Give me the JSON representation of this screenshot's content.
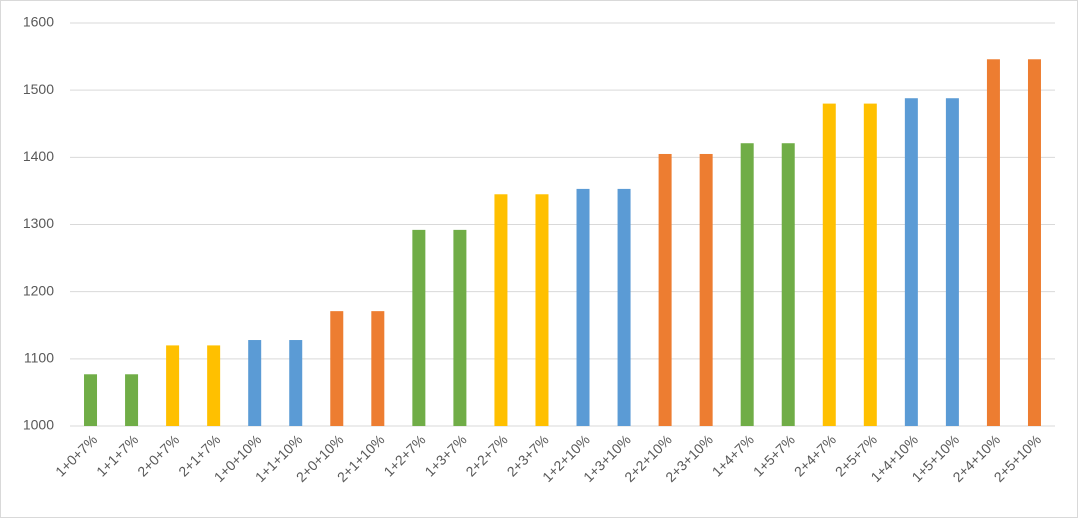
{
  "chart_data": {
    "type": "bar",
    "categories": [
      "1+0+7%",
      "1+1+7%",
      "2+0+7%",
      "2+1+7%",
      "1+0+10%",
      "1+1+10%",
      "2+0+10%",
      "2+1+10%",
      "1+2+7%",
      "1+3+7%",
      "2+2+7%",
      "2+3+7%",
      "1+2+10%",
      "1+3+10%",
      "2+2+10%",
      "2+3+10%",
      "1+4+7%",
      "1+5+7%",
      "2+4+7%",
      "2+5+7%",
      "1+4+10%",
      "1+5+10%",
      "2+4+10%",
      "2+5+10%"
    ],
    "values": [
      1077,
      1077,
      1120,
      1120,
      1128,
      1128,
      1171,
      1171,
      1292,
      1292,
      1345,
      1345,
      1353,
      1353,
      1405,
      1405,
      1421,
      1421,
      1480,
      1480,
      1488,
      1488,
      1546,
      1546
    ],
    "colors": [
      "#70ad47",
      "#70ad47",
      "#ffc000",
      "#ffc000",
      "#5b9bd5",
      "#5b9bd5",
      "#ed7d31",
      "#ed7d31",
      "#70ad47",
      "#70ad47",
      "#ffc000",
      "#ffc000",
      "#5b9bd5",
      "#5b9bd5",
      "#ed7d31",
      "#ed7d31",
      "#70ad47",
      "#70ad47",
      "#ffc000",
      "#ffc000",
      "#5b9bd5",
      "#5b9bd5",
      "#ed7d31",
      "#ed7d31"
    ],
    "ylim": [
      1000,
      1600
    ],
    "yticks": [
      1000,
      1100,
      1200,
      1300,
      1400,
      1500,
      1600
    ],
    "grid": true
  }
}
